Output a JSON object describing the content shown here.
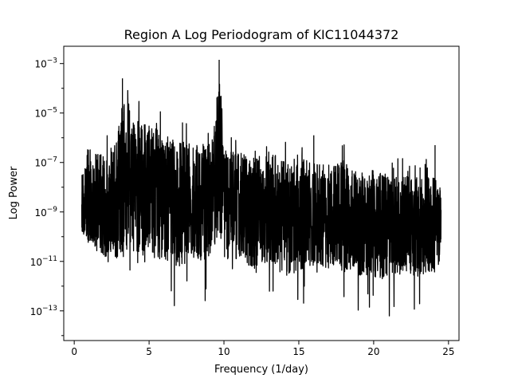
{
  "chart_data": {
    "type": "line",
    "title": "Region A Log Periodogram of KIC11044372",
    "xlabel": "Frequency (1/day)",
    "ylabel": "Log Power",
    "xlim": [
      -0.7,
      25.7
    ],
    "ylim_log10": [
      -14.2,
      -2.3
    ],
    "y_scale": "log",
    "grid": false,
    "legend": "none",
    "x_ticks": [
      {
        "value": 0,
        "label": "0"
      },
      {
        "value": 5,
        "label": "5"
      },
      {
        "value": 10,
        "label": "10"
      },
      {
        "value": 15,
        "label": "15"
      },
      {
        "value": 20,
        "label": "20"
      },
      {
        "value": 25,
        "label": "25"
      }
    ],
    "y_ticks": [
      {
        "value": -13,
        "base": "10",
        "exp": "−13"
      },
      {
        "value": -11,
        "base": "10",
        "exp": "−11"
      },
      {
        "value": -9,
        "base": "10",
        "exp": "−9"
      },
      {
        "value": -7,
        "base": "10",
        "exp": "−7"
      },
      {
        "value": -5,
        "base": "10",
        "exp": "−5"
      },
      {
        "value": -3,
        "base": "10",
        "exp": "−3"
      }
    ],
    "series": [
      {
        "color": "#000000",
        "x_range": [
          0.5,
          24.5
        ],
        "envelope": {
          "x": [
            0.5,
            1.0,
            2.0,
            3.0,
            3.2,
            4.0,
            5.0,
            6.0,
            7.0,
            8.0,
            9.0,
            9.6,
            9.7,
            10.0,
            11.0,
            12.0,
            13.0,
            14.0,
            15.0,
            16.0,
            17.0,
            18.0,
            19.0,
            20.0,
            21.0,
            22.0,
            23.0,
            24.0,
            24.5
          ],
          "upper_log10": [
            -7.5,
            -6.2,
            -6.8,
            -5.5,
            -3.6,
            -5.2,
            -5.4,
            -5.8,
            -6.1,
            -6.3,
            -6.2,
            -5.0,
            -2.8,
            -6.5,
            -6.6,
            -6.8,
            -6.5,
            -6.9,
            -6.8,
            -7.0,
            -7.1,
            -6.9,
            -7.4,
            -7.3,
            -7.5,
            -7.5,
            -7.6,
            -7.6,
            -7.8
          ],
          "lower_log10": [
            -10.0,
            -10.4,
            -10.8,
            -10.9,
            -10.9,
            -10.7,
            -10.8,
            -11.0,
            -11.2,
            -11.0,
            -10.9,
            -10.0,
            -9.8,
            -10.9,
            -10.9,
            -11.3,
            -11.0,
            -11.6,
            -11.4,
            -11.2,
            -11.3,
            -11.4,
            -11.6,
            -11.7,
            -11.6,
            -11.5,
            -11.7,
            -11.5,
            -11.0
          ]
        }
      }
    ]
  }
}
